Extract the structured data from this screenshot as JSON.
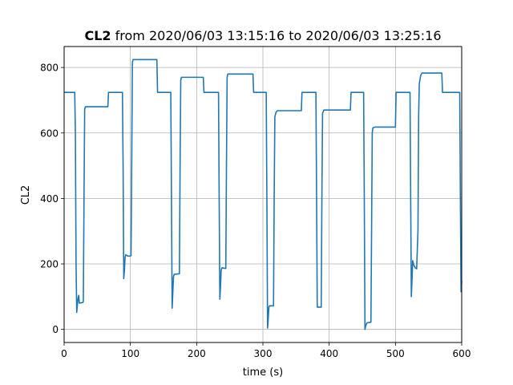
{
  "chart_data": {
    "type": "line",
    "title_bold": "CL2",
    "title_rest": " from 2020/06/03 13:15:16 to 2020/06/03 13:25:16",
    "xlabel": "time (s)",
    "ylabel": "CL2",
    "xlim": [
      0,
      600
    ],
    "ylim": [
      -40,
      864
    ],
    "xticks": [
      0,
      100,
      200,
      300,
      400,
      500,
      600
    ],
    "yticks": [
      0,
      200,
      400,
      600,
      800
    ],
    "grid": true,
    "legend": "none",
    "line_color": "#1f77b4",
    "series": [
      {
        "points": [
          [
            0,
            724
          ],
          [
            16,
            724
          ],
          [
            17,
            600
          ],
          [
            18,
            200
          ],
          [
            19,
            52
          ],
          [
            20,
            75
          ],
          [
            21,
            95
          ],
          [
            22,
            104
          ],
          [
            23,
            80
          ],
          [
            28,
            82
          ],
          [
            29,
            85
          ],
          [
            30,
            400
          ],
          [
            31,
            672
          ],
          [
            32,
            680
          ],
          [
            45,
            680
          ],
          [
            66,
            680
          ],
          [
            67,
            724
          ],
          [
            88,
            724
          ],
          [
            89,
            500
          ],
          [
            90,
            155
          ],
          [
            91,
            180
          ],
          [
            92,
            220
          ],
          [
            93,
            228
          ],
          [
            96,
            224
          ],
          [
            100,
            224
          ],
          [
            101,
            226
          ],
          [
            102,
            500
          ],
          [
            103,
            815
          ],
          [
            104,
            824
          ],
          [
            140,
            824
          ],
          [
            141,
            724
          ],
          [
            161,
            724
          ],
          [
            162,
            400
          ],
          [
            163,
            65
          ],
          [
            164,
            110
          ],
          [
            165,
            160
          ],
          [
            166,
            168
          ],
          [
            174,
            170
          ],
          [
            175,
            500
          ],
          [
            176,
            760
          ],
          [
            177,
            770
          ],
          [
            210,
            770
          ],
          [
            211,
            724
          ],
          [
            233,
            724
          ],
          [
            234,
            400
          ],
          [
            235,
            92
          ],
          [
            236,
            130
          ],
          [
            237,
            180
          ],
          [
            238,
            188
          ],
          [
            244,
            186
          ],
          [
            245,
            500
          ],
          [
            246,
            770
          ],
          [
            247,
            780
          ],
          [
            285,
            780
          ],
          [
            286,
            724
          ],
          [
            305,
            724
          ],
          [
            306,
            400
          ],
          [
            307,
            4
          ],
          [
            308,
            30
          ],
          [
            309,
            68
          ],
          [
            310,
            72
          ],
          [
            316,
            72
          ],
          [
            317,
            400
          ],
          [
            318,
            650
          ],
          [
            320,
            664
          ],
          [
            322,
            668
          ],
          [
            358,
            668
          ],
          [
            359,
            724
          ],
          [
            380,
            724
          ],
          [
            381,
            400
          ],
          [
            382,
            68
          ],
          [
            388,
            68
          ],
          [
            389,
            400
          ],
          [
            390,
            660
          ],
          [
            392,
            670
          ],
          [
            432,
            670
          ],
          [
            433,
            724
          ],
          [
            452,
            724
          ],
          [
            453,
            400
          ],
          [
            454,
            0
          ],
          [
            455,
            10
          ],
          [
            457,
            20
          ],
          [
            463,
            22
          ],
          [
            464,
            300
          ],
          [
            465,
            600
          ],
          [
            466,
            616
          ],
          [
            470,
            618
          ],
          [
            500,
            618
          ],
          [
            501,
            724
          ],
          [
            522,
            724
          ],
          [
            523,
            400
          ],
          [
            524,
            100
          ],
          [
            525,
            150
          ],
          [
            526,
            210
          ],
          [
            528,
            195
          ],
          [
            530,
            188
          ],
          [
            532,
            185
          ],
          [
            534,
            300
          ],
          [
            535,
            650
          ],
          [
            536,
            750
          ],
          [
            538,
            775
          ],
          [
            540,
            783
          ],
          [
            570,
            783
          ],
          [
            571,
            724
          ],
          [
            597,
            724
          ],
          [
            598,
            400
          ],
          [
            599,
            115
          ],
          [
            600,
            148
          ]
        ]
      }
    ]
  }
}
